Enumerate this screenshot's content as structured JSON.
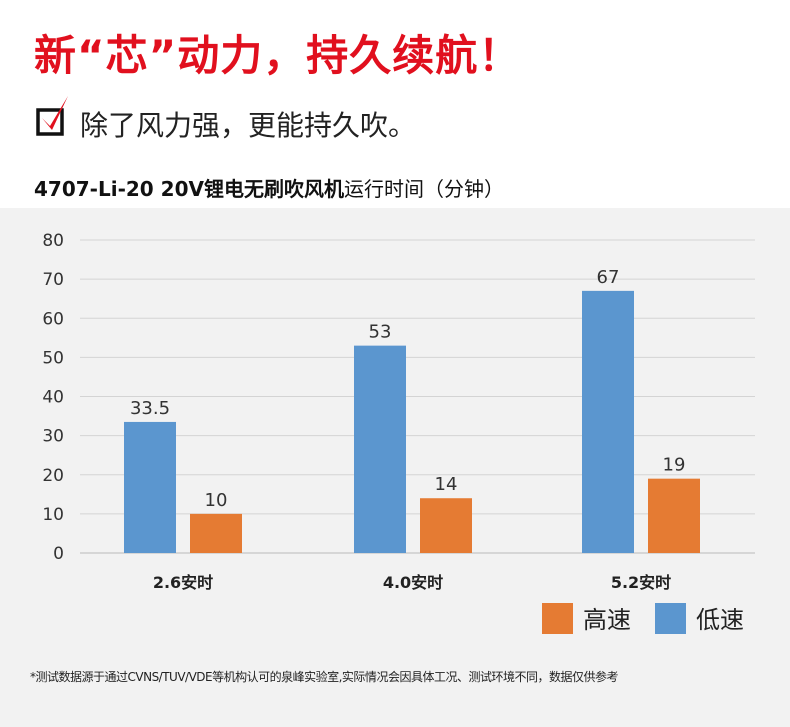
{
  "headline": "新“芯”动力，持久续航！",
  "subheadline": "除了风力强，更能持久吹。",
  "colors": {
    "accent": "#e1101e",
    "high": "#e57b33",
    "low": "#5b96cf",
    "grid": "#d4d4d4"
  },
  "chart_data": {
    "type": "bar",
    "title_bold": "4707-Li-20 20V锂电无刷吹风机",
    "title_rest": "运行时间（分钟）",
    "categories": [
      "2.6安时",
      "4.0安时",
      "5.2安时"
    ],
    "series": [
      {
        "name": "低速",
        "values": [
          33.5,
          53,
          67
        ],
        "labels": [
          "33.5",
          "53",
          "67"
        ]
      },
      {
        "name": "高速",
        "values": [
          10,
          14,
          19
        ],
        "labels": [
          "10",
          "14",
          "19"
        ]
      }
    ],
    "ylim": [
      0,
      80
    ],
    "yticks": [
      "0",
      "10",
      "20",
      "30",
      "40",
      "50",
      "60",
      "70",
      "80"
    ],
    "grid": true,
    "legend_order": [
      "高速",
      "低速"
    ],
    "legend_placement": "bottom-right"
  },
  "footnote": "*测试数据源于通过CVNS/TUV/VDE等机构认可的泉峰实验室,实际情况会因具体工况、测试环境不同，数据仅供参考"
}
